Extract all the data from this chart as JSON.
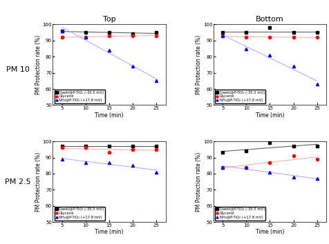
{
  "title_top": "Top",
  "title_bottom": "Bottom",
  "row_labels": [
    "PM 10",
    "PM 2.5"
  ],
  "xlabel": "Time (min)",
  "ylabel": "PM Protection rate (%)",
  "xticks": [
    5,
    10,
    15,
    20,
    25
  ],
  "yticks": [
    50,
    60,
    70,
    80,
    90,
    100
  ],
  "ylim": [
    50,
    100
  ],
  "legend_labels": [
    "Daeki@P-TiO₂ (-35.5 mV)",
    "Glycerol",
    "NH₄@P-TiO₂ (+17.8 mV)"
  ],
  "series_colors": [
    "black",
    "red",
    "blue"
  ],
  "series_markers": [
    "s",
    "o",
    "^"
  ],
  "pm10_top_black_x": [
    5,
    10,
    15,
    20,
    25
  ],
  "pm10_top_black_y": [
    96,
    95,
    95,
    94,
    95
  ],
  "pm10_top_red_x": [
    5,
    10,
    15,
    20,
    25
  ],
  "pm10_top_red_y": [
    92,
    92,
    93,
    93,
    93
  ],
  "pm10_top_blue_x": [
    5,
    10,
    15,
    20,
    25
  ],
  "pm10_top_blue_y": [
    96,
    92,
    84,
    74,
    65
  ],
  "pm10_bot_black_x": [
    5,
    10,
    15,
    20,
    25
  ],
  "pm10_bot_black_y": [
    95,
    95,
    98,
    95,
    95
  ],
  "pm10_bot_red_x": [
    5,
    10,
    15,
    20,
    25
  ],
  "pm10_bot_red_y": [
    93,
    92,
    92,
    92,
    92
  ],
  "pm10_bot_blue_x": [
    5,
    10,
    15,
    20,
    25
  ],
  "pm10_bot_blue_y": [
    93,
    85,
    81,
    74,
    63
  ],
  "pm25_top_black_x": [
    5,
    10,
    15,
    20,
    25
  ],
  "pm25_top_black_y": [
    97,
    97,
    97,
    97,
    97
  ],
  "pm25_top_red_x": [
    5,
    10,
    15,
    20,
    25
  ],
  "pm25_top_red_y": [
    96,
    96,
    93,
    95,
    95
  ],
  "pm25_top_blue_x": [
    5,
    10,
    15,
    20,
    25
  ],
  "pm25_top_blue_y": [
    89,
    87,
    87,
    85,
    81
  ],
  "pm25_bot_black_x": [
    5,
    10,
    15,
    20,
    25
  ],
  "pm25_bot_black_y": [
    93,
    94,
    99,
    97,
    97
  ],
  "pm25_bot_red_x": [
    5,
    10,
    15,
    20,
    25
  ],
  "pm25_bot_red_y": [
    84,
    84,
    87,
    91,
    89
  ],
  "pm25_bot_blue_x": [
    5,
    10,
    15,
    20,
    25
  ],
  "pm25_bot_blue_y": [
    84,
    84,
    81,
    78,
    77
  ],
  "legend_fontsize": 3.8,
  "tick_fontsize": 5.0,
  "label_fontsize": 5.5,
  "col_title_fontsize": 8,
  "row_label_fontsize": 8,
  "marker_size": 3.0,
  "line_width": 0.75,
  "bg_color": "#ffffff",
  "line_color_black": "#555555",
  "line_color_red": "#ffaaaa",
  "line_color_blue": "#aaaaff"
}
